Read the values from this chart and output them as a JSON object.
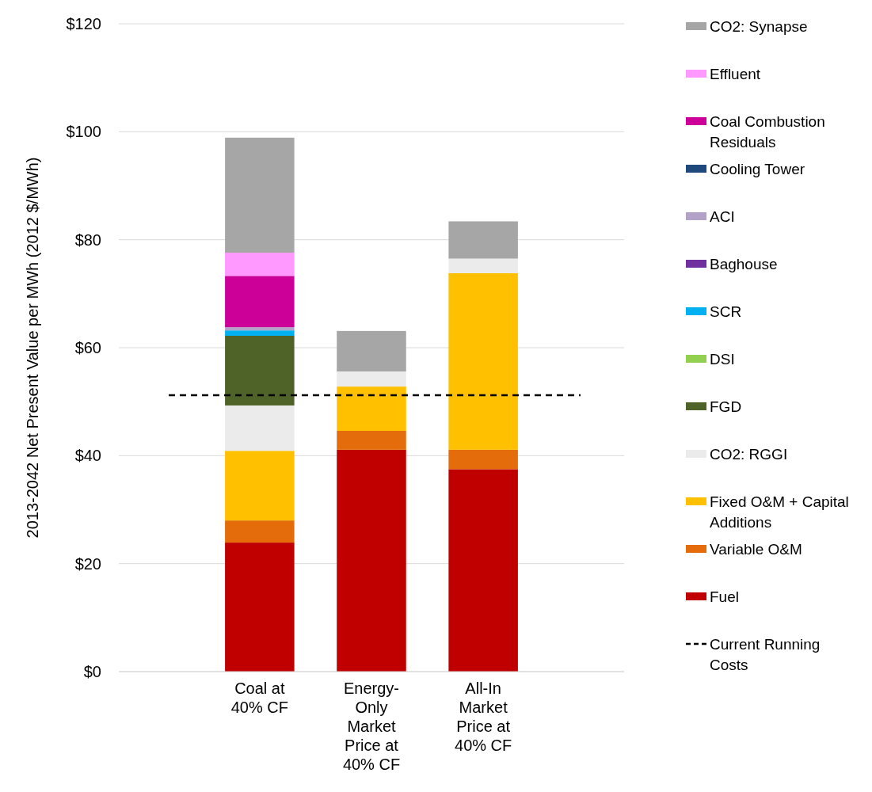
{
  "chart_data": {
    "type": "bar",
    "stacked": true,
    "ylabel": "2013-2042 Net Present Value per MWh (2012 $/MWh)",
    "categories": [
      "Coal at 40% CF",
      "Energy-Only Market Price at 40% CF",
      "All-In Market Price at 40% CF"
    ],
    "series": [
      {
        "name": "Fuel",
        "color": "#c00000",
        "values": [
          23.9,
          41.1,
          37.5
        ]
      },
      {
        "name": "Variable O&M",
        "color": "#e46c0a",
        "values": [
          4.1,
          3.5,
          3.6
        ]
      },
      {
        "name": "Fixed O&M + Capital Additions",
        "color": "#ffc000",
        "values": [
          12.9,
          8.2,
          32.7
        ]
      },
      {
        "name": "CO2: RGGI",
        "color": "#ebebeb",
        "values": [
          8.4,
          2.8,
          2.7
        ]
      },
      {
        "name": "FGD",
        "color": "#4f6228",
        "values": [
          12.9,
          0,
          0
        ]
      },
      {
        "name": "DSI",
        "color": "#92d050",
        "values": [
          0,
          0,
          0
        ]
      },
      {
        "name": "SCR",
        "color": "#00b0f0",
        "values": [
          1.0,
          0,
          0
        ]
      },
      {
        "name": "Baghouse",
        "color": "#7030a0",
        "values": [
          0,
          0,
          0
        ]
      },
      {
        "name": "ACI",
        "color": "#b3a2c7",
        "values": [
          0.6,
          0,
          0
        ]
      },
      {
        "name": "Cooling Tower",
        "color": "#1f497d",
        "values": [
          0,
          0,
          0
        ]
      },
      {
        "name": "Coal Combustion Residuals",
        "color": "#cc0099",
        "values": [
          9.5,
          0,
          0
        ]
      },
      {
        "name": "Effluent",
        "color": "#ff99ff",
        "values": [
          4.3,
          0,
          0
        ]
      },
      {
        "name": "CO2: Synapse",
        "color": "#a6a6a6",
        "values": [
          21.3,
          7.5,
          6.9
        ]
      }
    ],
    "ref_lines": [
      {
        "axis": "y",
        "value": 51.2,
        "label": "Current Running Costs",
        "color": "#000000",
        "line_style": "dashed"
      }
    ],
    "ylim": [
      0,
      120
    ],
    "yticks": [
      {
        "value": 0,
        "label": "$0"
      },
      {
        "value": 20,
        "label": "$20"
      },
      {
        "value": 40,
        "label": "$40"
      },
      {
        "value": 60,
        "label": "$60"
      },
      {
        "value": 80,
        "label": "$80"
      },
      {
        "value": 100,
        "label": "$100"
      },
      {
        "value": 120,
        "label": "$120"
      }
    ],
    "grid": "y",
    "legend": "right"
  }
}
